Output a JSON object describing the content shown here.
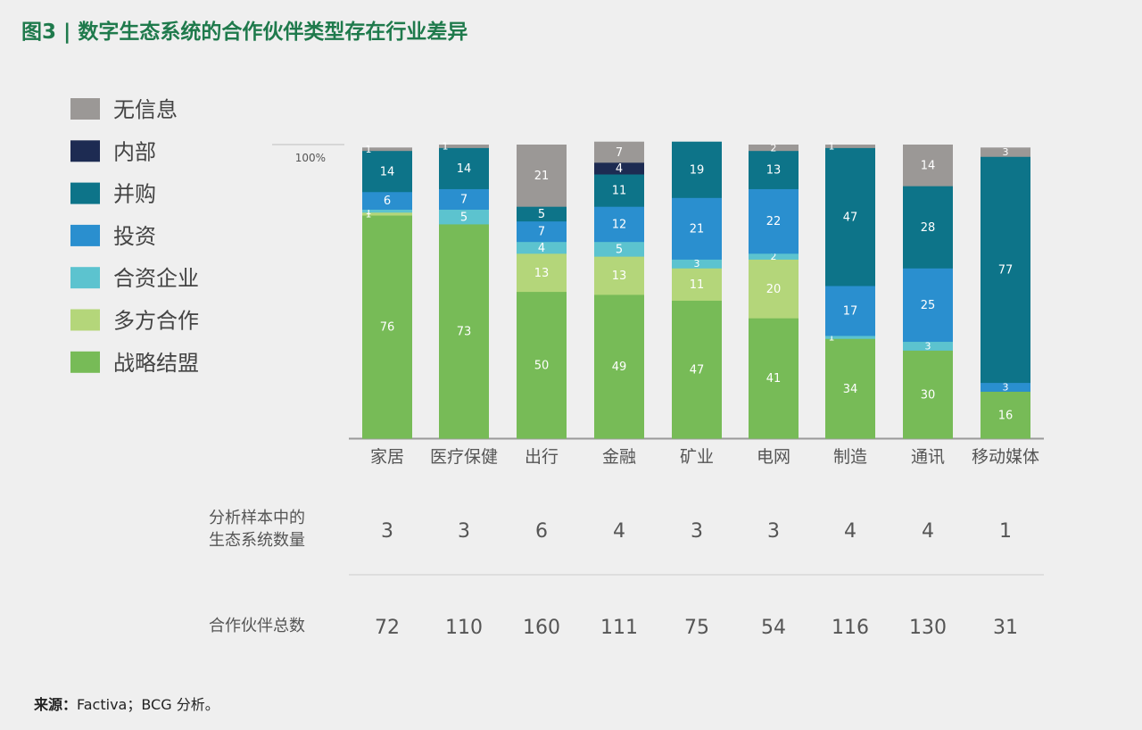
{
  "title": "图3 | 数字生态系统的合作伙伴类型存在行业差异",
  "source_label": "来源：",
  "source_text": "Factiva；BCG 分析。",
  "chart_data": {
    "type": "bar",
    "stacked": true,
    "title": "图3 | 数字生态系统的合作伙伴类型存在行业差异",
    "ylabel": "",
    "ylim": [
      0,
      100
    ],
    "y_tick_label": "100%",
    "categories": [
      "家居",
      "医疗保健",
      "出行",
      "金融",
      "矿业",
      "电网",
      "制造",
      "通讯",
      "移动媒体"
    ],
    "series": [
      {
        "name": "战略结盟",
        "color": "#77bb57",
        "values": [
          76,
          73,
          50,
          49,
          47,
          41,
          34,
          30,
          16
        ]
      },
      {
        "name": "多方合作",
        "color": "#b4d67a",
        "values": [
          1,
          0,
          13,
          13,
          11,
          20,
          0,
          0,
          0
        ]
      },
      {
        "name": "合资企业",
        "color": "#5cc3cf",
        "values": [
          1,
          5,
          4,
          5,
          3,
          2,
          1,
          3,
          0
        ]
      },
      {
        "name": "投资",
        "color": "#2a8fcf",
        "values": [
          6,
          7,
          7,
          12,
          21,
          22,
          17,
          25,
          3
        ]
      },
      {
        "name": "并购",
        "color": "#0d7489",
        "values": [
          14,
          14,
          5,
          11,
          19,
          13,
          47,
          28,
          77
        ]
      },
      {
        "name": "内部",
        "color": "#1d2b52",
        "values": [
          0,
          0,
          0,
          4,
          0,
          0,
          0,
          0,
          0
        ]
      },
      {
        "name": "无信息",
        "color": "#9b9896",
        "values": [
          1,
          1,
          21,
          7,
          0,
          2,
          1,
          14,
          3
        ]
      }
    ],
    "legend_order": [
      "无信息",
      "内部",
      "并购",
      "投资",
      "合资企业",
      "多方合作",
      "战略结盟"
    ],
    "legend_position": "left",
    "table": {
      "rows": [
        {
          "label": [
            "分析样本中的",
            "生态系统数量"
          ],
          "values": [
            "3",
            "3",
            "6",
            "4",
            "3",
            "3",
            "4",
            "4",
            "1"
          ]
        },
        {
          "label": [
            "合作伙伴总数"
          ],
          "values": [
            "72",
            "110",
            "160",
            "111",
            "75",
            "54",
            "116",
            "130",
            "31"
          ]
        }
      ]
    }
  }
}
